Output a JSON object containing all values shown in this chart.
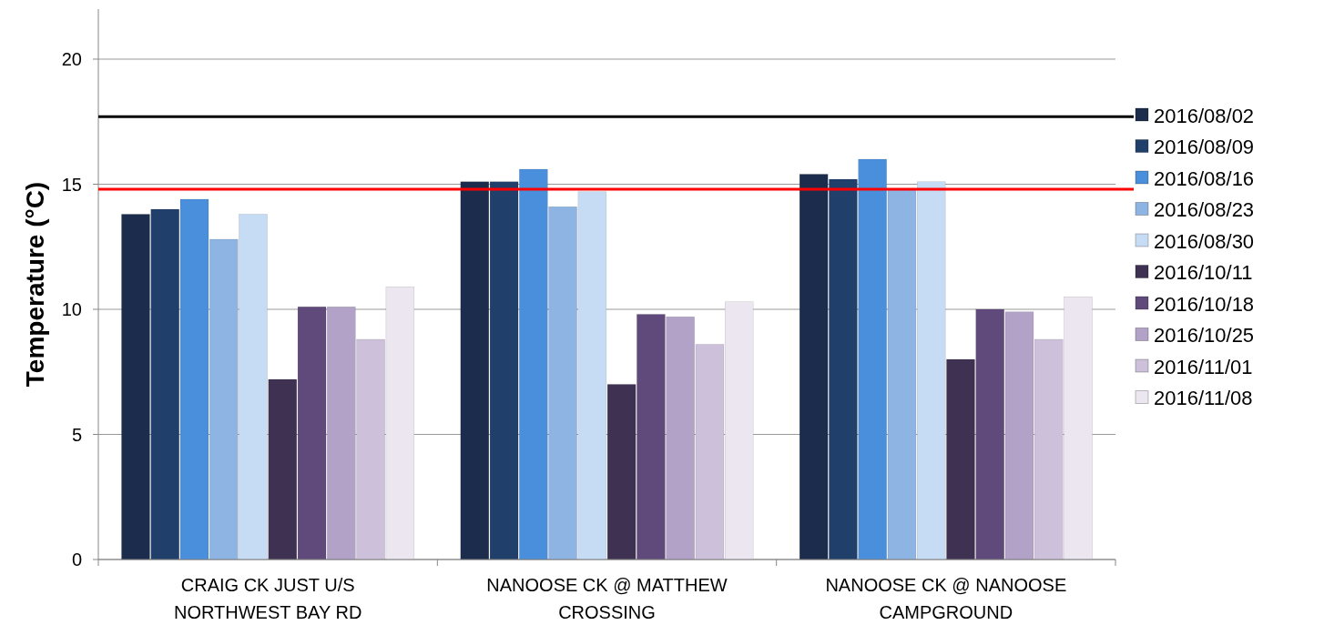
{
  "chart_data": {
    "type": "bar",
    "ylabel": "Temperature (°C)",
    "categories": [
      "CRAIG CK JUST U/S NORTHWEST BAY RD",
      "NANOOSE CK @ MATTHEW CROSSING",
      "NANOOSE CK @ NANOOSE CAMPGROUND"
    ],
    "series": [
      {
        "name": "2016/08/02",
        "color": "#1b2c4c",
        "values": [
          13.8,
          15.1,
          15.4
        ]
      },
      {
        "name": "2016/08/09",
        "color": "#203f6b",
        "values": [
          14.0,
          15.1,
          15.2
        ]
      },
      {
        "name": "2016/08/16",
        "color": "#4a8fdc",
        "values": [
          14.4,
          15.6,
          16.0
        ]
      },
      {
        "name": "2016/08/23",
        "color": "#8db4e2",
        "values": [
          12.8,
          14.1,
          14.8
        ]
      },
      {
        "name": "2016/08/30",
        "color": "#c6dcf5",
        "values": [
          13.8,
          14.7,
          15.1
        ]
      },
      {
        "name": "2016/10/11",
        "color": "#3f3151",
        "values": [
          7.2,
          7.0,
          8.0
        ]
      },
      {
        "name": "2016/10/18",
        "color": "#604a7b",
        "values": [
          10.1,
          9.8,
          10.0
        ]
      },
      {
        "name": "2016/10/25",
        "color": "#b3a2c7",
        "values": [
          10.1,
          9.7,
          9.9
        ]
      },
      {
        "name": "2016/11/01",
        "color": "#ccc0da",
        "values": [
          8.8,
          8.6,
          8.8
        ]
      },
      {
        "name": "2016/11/08",
        "color": "#ebe6f0",
        "values": [
          10.9,
          10.3,
          10.5
        ]
      }
    ],
    "ylim": [
      0,
      22
    ],
    "yticks": [
      0,
      5,
      10,
      15,
      20
    ],
    "grid": "y",
    "legend": "right",
    "ref_lines": [
      {
        "axis": "y",
        "value": 17.7,
        "color": "#000000"
      },
      {
        "axis": "y",
        "value": 14.8,
        "color": "#ff0000"
      }
    ]
  }
}
